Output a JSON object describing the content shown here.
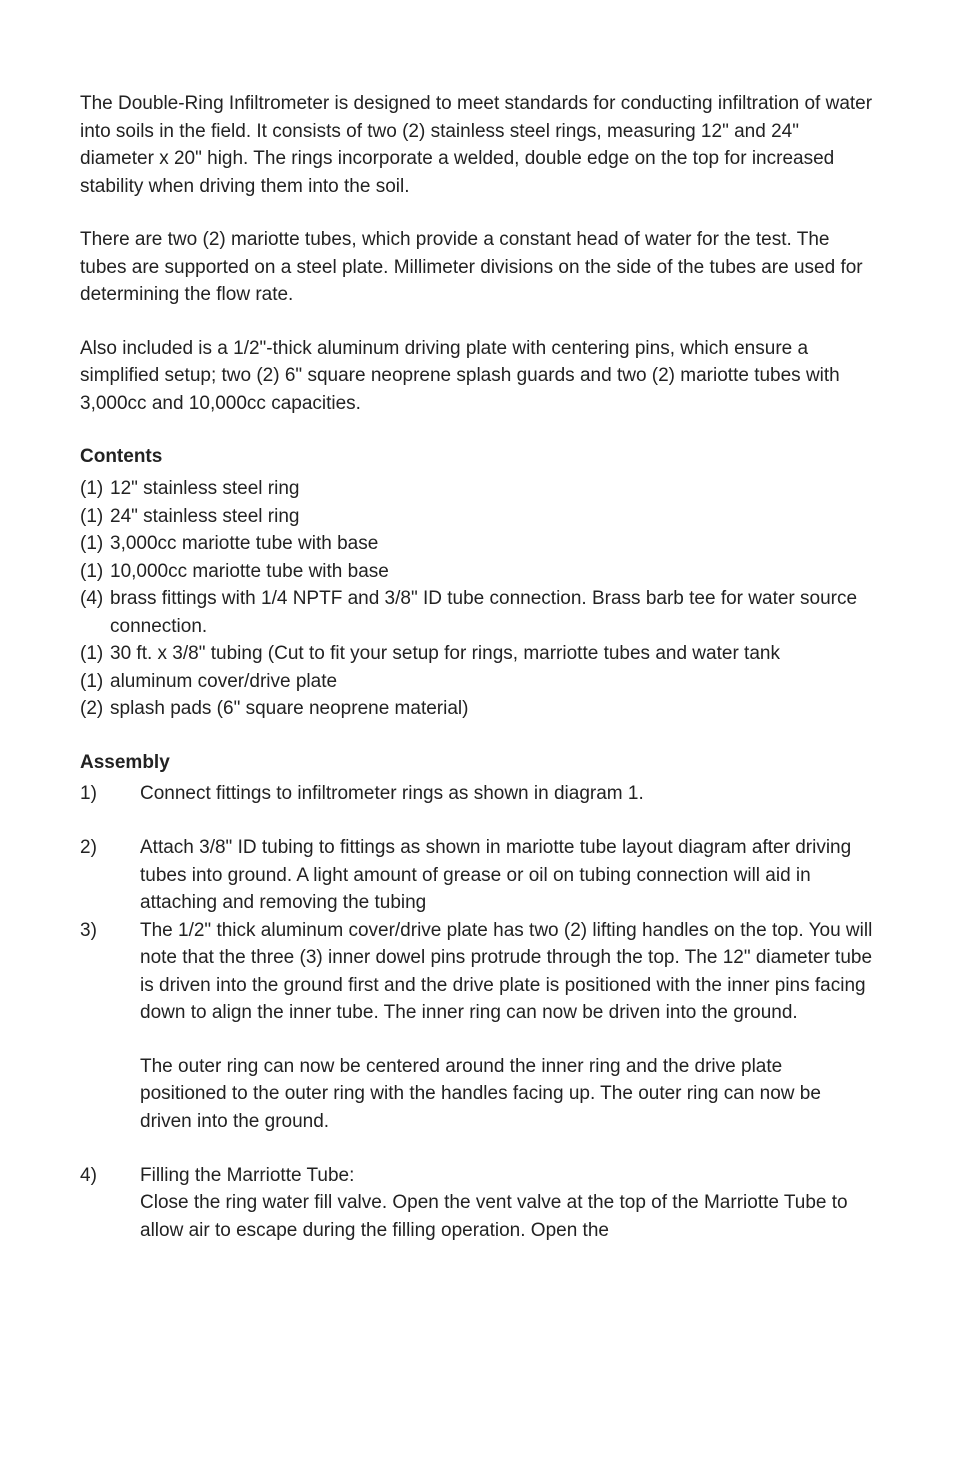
{
  "intro": {
    "p1": "The Double-Ring Infiltrometer is designed to meet standards for conducting infiltration of water into soils in the field. It consists of two (2) stainless steel rings, measuring 12\" and 24\" diameter x 20\" high. The rings incorporate a welded, double edge on the top for increased stability when driving them into the soil.",
    "p2": "There are two (2) mariotte tubes, which provide a constant head of water for the test. The tubes are supported on a steel plate. Millimeter divisions on the side of the tubes are used for determining the flow rate.",
    "p3": "Also included is a 1/2\"-thick aluminum driving plate with centering pins, which ensure a simplified setup; two (2) 6\" square neoprene splash guards and two (2) mariotte tubes with 3,000cc and 10,000cc capacities."
  },
  "contents": {
    "heading": "Contents",
    "items": [
      {
        "qty": "(1)",
        "text": "12\" stainless steel ring"
      },
      {
        "qty": "(1)",
        "text": "24\" stainless steel ring"
      },
      {
        "qty": "(1)",
        "text": "3,000cc mariotte tube with base"
      },
      {
        "qty": "(1)",
        "text": "10,000cc mariotte tube with base"
      },
      {
        "qty": "(4)",
        "text": "brass fittings with 1/4 NPTF and 3/8\" ID tube connection. Brass barb tee for water source connection."
      },
      {
        "qty": "(1)",
        "text": "30 ft. x 3/8\" tubing (Cut to fit your setup for rings, marriotte tubes and water tank"
      },
      {
        "qty": "(1)",
        "text": "aluminum cover/drive plate"
      },
      {
        "qty": "(2)",
        "text": "splash pads (6\" square neoprene material)"
      }
    ]
  },
  "assembly": {
    "heading": "Assembly",
    "steps": {
      "s1": {
        "num": "1)",
        "text": "Connect fittings to infiltrometer rings as shown in diagram 1."
      },
      "s2": {
        "num": "2)",
        "text": "Attach 3/8\" ID tubing to fittings as shown in mariotte tube layout diagram after driving tubes into ground. A light amount of grease or oil on tubing connection will aid in attaching and removing the tubing"
      },
      "s3": {
        "num": "3)",
        "text": "The 1/2\" thick aluminum cover/drive plate has two (2) lifting handles on the top. You will note that the three (3) inner dowel pins protrude through the top. The 12\" diameter tube is driven into the ground first and the drive plate is positioned with the inner pins facing down to align the inner tube. The inner ring can now be driven into the ground.",
        "text2": "The outer ring can now be centered around the inner ring and the drive plate positioned to the outer ring with the handles facing up. The outer ring can now be driven into the ground."
      },
      "s4": {
        "num": "4)",
        "title": "Filling the Marriotte Tube:",
        "text": "Close the ring water fill valve. Open the vent valve at the top of the Marriotte Tube to allow air to escape during the filling operation. Open the"
      }
    }
  }
}
